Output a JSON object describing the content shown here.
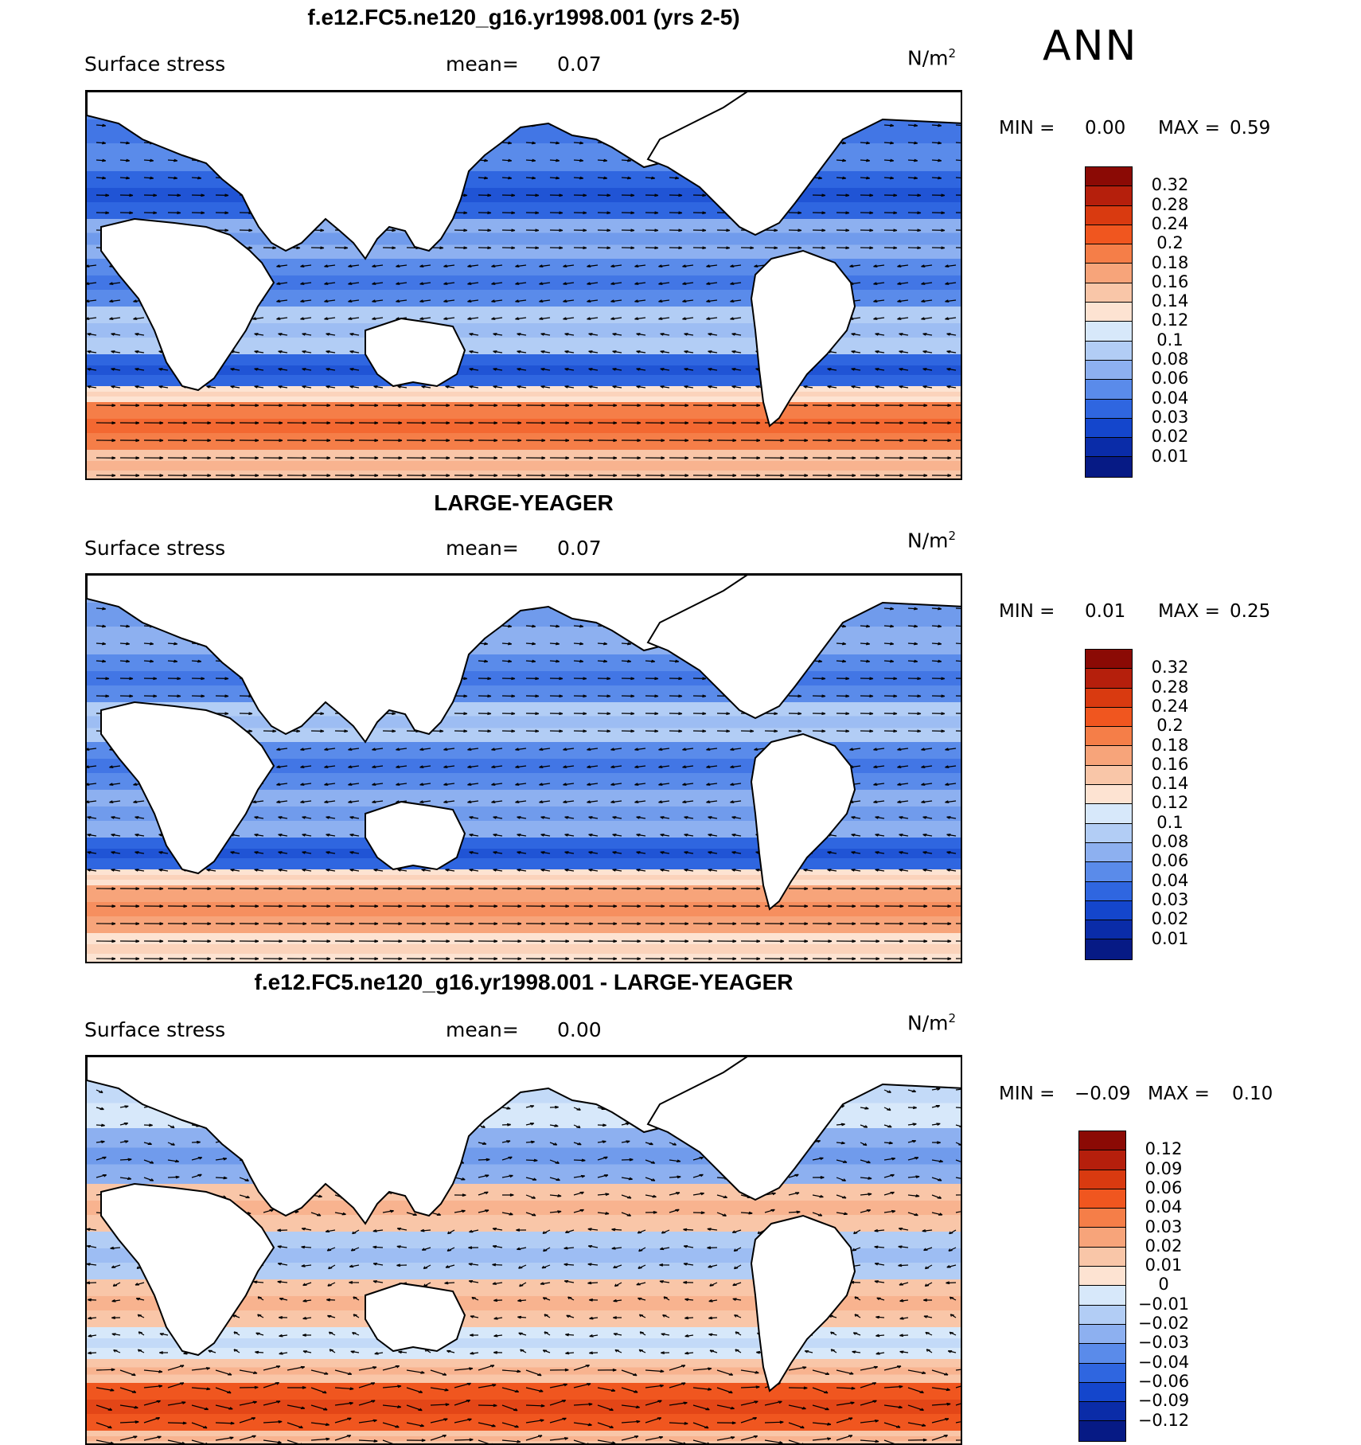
{
  "season": "ANN",
  "panels": [
    {
      "title": "f.e12.FC5.ne120_g16.yr1998.001 (yrs 2-5)",
      "variable": "Surface stress",
      "mean_label": "mean=",
      "mean_value": "0.07",
      "units_base": "N/m",
      "units_exp": "2",
      "min_label": "MIN =",
      "min_value": "0.00",
      "max_label": "MAX =",
      "max_value": "0.59",
      "colorbar_labels": [
        "0.32",
        "0.28",
        "0.24",
        "0.2",
        "0.18",
        "0.16",
        "0.14",
        "0.12",
        "0.1",
        "0.08",
        "0.06",
        "0.04",
        "0.03",
        "0.02",
        "0.01"
      ],
      "colorbar_colors": [
        "#8b0a05",
        "#b51f0c",
        "#d93a10",
        "#f0561f",
        "#f57e48",
        "#f7a47a",
        "#f9c6a8",
        "#fde3d2",
        "#d7e8fa",
        "#b2cdf5",
        "#8db0f0",
        "#5a8bea",
        "#2f66e0",
        "#1446cc",
        "#0a2ca8",
        "#061a85"
      ]
    },
    {
      "title": "LARGE-YEAGER",
      "variable": "Surface stress",
      "mean_label": "mean=",
      "mean_value": "0.07",
      "units_base": "N/m",
      "units_exp": "2",
      "min_label": "MIN =",
      "min_value": "0.01",
      "max_label": "MAX =",
      "max_value": "0.25",
      "colorbar_labels": [
        "0.32",
        "0.28",
        "0.24",
        "0.2",
        "0.18",
        "0.16",
        "0.14",
        "0.12",
        "0.1",
        "0.08",
        "0.06",
        "0.04",
        "0.03",
        "0.02",
        "0.01"
      ],
      "colorbar_colors": [
        "#8b0a05",
        "#b51f0c",
        "#d93a10",
        "#f0561f",
        "#f57e48",
        "#f7a47a",
        "#f9c6a8",
        "#fde3d2",
        "#d7e8fa",
        "#b2cdf5",
        "#8db0f0",
        "#5a8bea",
        "#2f66e0",
        "#1446cc",
        "#0a2ca8",
        "#061a85"
      ]
    },
    {
      "title": "f.e12.FC5.ne120_g16.yr1998.001 - LARGE-YEAGER",
      "variable": "Surface stress",
      "mean_label": "mean=",
      "mean_value": "0.00",
      "units_base": "N/m",
      "units_exp": "2",
      "min_label": "MIN =",
      "min_value": "−0.09",
      "max_label": "MAX =",
      "max_value": "0.10",
      "colorbar_labels": [
        "0.12",
        "0.09",
        "0.06",
        "0.04",
        "0.03",
        "0.02",
        "0.01",
        "0",
        "−0.01",
        "−0.02",
        "−0.03",
        "−0.04",
        "−0.06",
        "−0.09",
        "−0.12"
      ],
      "colorbar_colors": [
        "#8b0a05",
        "#b51f0c",
        "#d93a10",
        "#f0561f",
        "#f57e48",
        "#f7a47a",
        "#f9c6a8",
        "#fde3d2",
        "#d7e8fa",
        "#b2cdf5",
        "#8db0f0",
        "#5a8bea",
        "#2f66e0",
        "#1446cc",
        "#0a2ca8",
        "#061a85"
      ]
    }
  ],
  "colors": {
    "land": "#ffffff",
    "coast": "#000000",
    "arrow": "#000000"
  }
}
